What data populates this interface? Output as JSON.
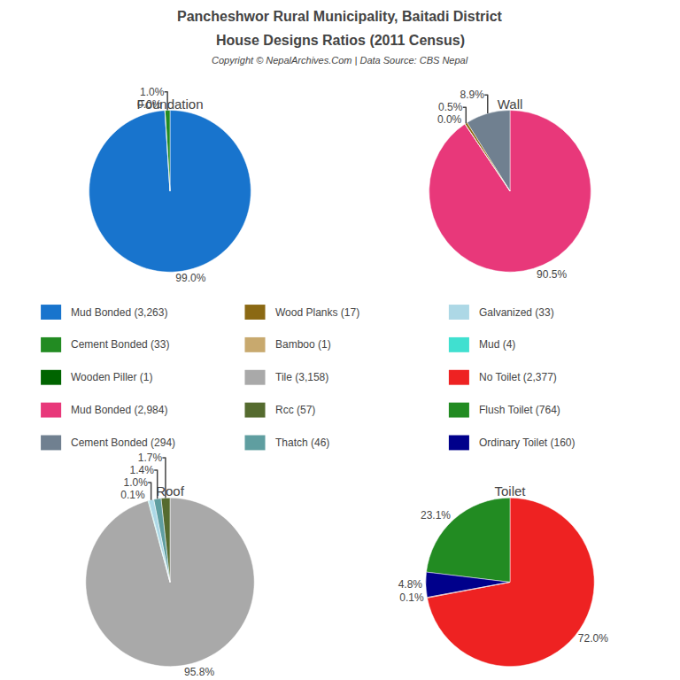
{
  "title": "Pancheshwor Rural Municipality, Baitadi District",
  "subtitle": "House Designs Ratios (2011 Census)",
  "annotations": [
    "Copyright © NepalArchives.Com | Data Source: CBS Nepal"
  ],
  "chart_data": [
    {
      "type": "pie",
      "title": "Foundation",
      "categories": [
        "Mud Bonded (3,263)",
        "Cement Bonded (33)",
        "Wooden Piller (1)"
      ],
      "values": [
        99.0,
        1.0,
        0.0
      ],
      "value_labels": [
        "99.0%",
        "1.0%",
        "0.0%"
      ],
      "colors": [
        "#1874CD",
        "#228B22",
        "#006400"
      ],
      "data_labels": true
    },
    {
      "type": "pie",
      "title": "Wall",
      "categories": [
        "Mud Bonded (2,984)",
        "Cement Bonded (294)",
        "Wood Planks (17)",
        "Bamboo (1)"
      ],
      "values": [
        90.5,
        8.9,
        0.5,
        0.0
      ],
      "value_labels": [
        "90.5%",
        "8.9%",
        "0.5%",
        "0.0%"
      ],
      "colors": [
        "#E8387A",
        "#708090",
        "#8B6914",
        "#C8A96E"
      ],
      "data_labels": true
    },
    {
      "type": "pie",
      "title": "Roof",
      "categories": [
        "Tile (3,158)",
        "Rcc (57)",
        "Thatch (46)",
        "Galvanized (33)",
        "Mud (4)"
      ],
      "values": [
        95.8,
        1.7,
        1.4,
        1.0,
        0.1
      ],
      "value_labels": [
        "95.8%",
        "1.7%",
        "1.4%",
        "1.0%",
        "0.1%"
      ],
      "colors": [
        "#A9A9A9",
        "#556B2F",
        "#5F9EA0",
        "#ADD8E6",
        "#40E0D0"
      ],
      "data_labels": true
    },
    {
      "type": "pie",
      "title": "Toilet",
      "categories": [
        "No Toilet (2,377)",
        "Flush Toilet (764)",
        "Ordinary Toilet (160)",
        null
      ],
      "values": [
        72.0,
        23.1,
        4.8,
        0.1
      ],
      "value_labels": [
        "72.0%",
        "23.1%",
        "4.8%",
        "0.1%"
      ],
      "colors": [
        "#EE2222",
        "#228B22",
        "#00008B",
        "#AA0000"
      ],
      "data_labels": true
    }
  ]
}
